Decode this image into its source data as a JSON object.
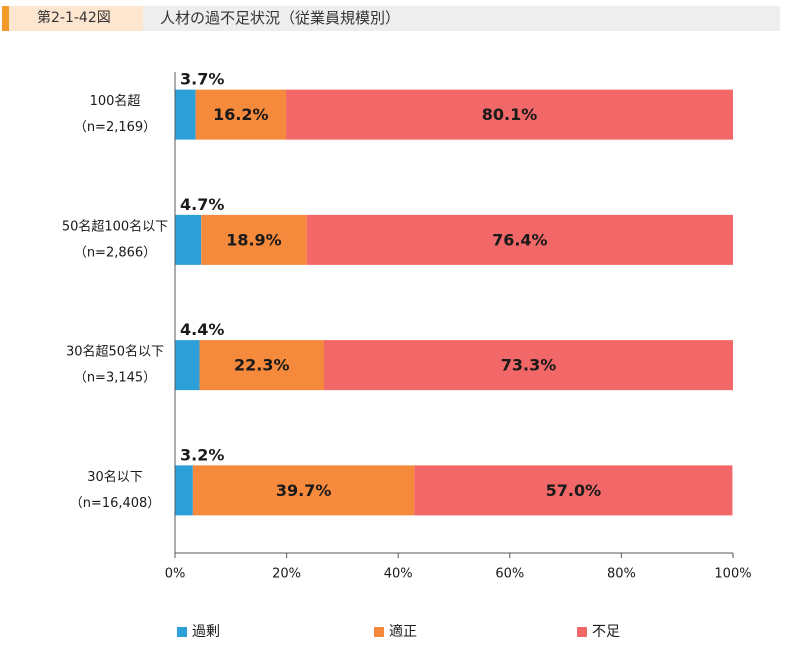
{
  "header": {
    "figure_number": "第2-1-42図"
  },
  "colors": {
    "header_accent": "#f39a2b",
    "header_number_bg": "#fde6d0",
    "header_title_bg": "#eeeeee",
    "axis": "#595959"
  },
  "chart_data": {
    "type": "bar",
    "orientation": "horizontal",
    "stacked": true,
    "title": "人材の過不足状況（従業員規模別）",
    "categories": [
      "100名超",
      "50名超100名以下",
      "30名超50名以下",
      "30名以下"
    ],
    "category_sample_sizes": [
      "（n=2,169）",
      "（n=2,866）",
      "（n=3,145）",
      "（n=16,408）"
    ],
    "series": [
      {
        "name": "過剰",
        "color": "#2d9fd8",
        "values": [
          3.7,
          4.7,
          4.4,
          3.2
        ],
        "labels": [
          "3.7%",
          "4.7%",
          "4.4%",
          "3.2%"
        ]
      },
      {
        "name": "適正",
        "color": "#f58a3c",
        "values": [
          16.2,
          18.9,
          22.3,
          39.7
        ],
        "labels": [
          "16.2%",
          "18.9%",
          "22.3%",
          "39.7%"
        ]
      },
      {
        "name": "不足",
        "color": "#f26767",
        "values": [
          80.1,
          76.4,
          73.3,
          57.0
        ],
        "labels": [
          "80.1%",
          "76.4%",
          "73.3%",
          "57.0%"
        ]
      }
    ],
    "xlim": [
      0,
      100
    ],
    "xticks": [
      0,
      20,
      40,
      60,
      80,
      100
    ],
    "xtick_labels": [
      "0%",
      "20%",
      "40%",
      "60%",
      "80%",
      "100%"
    ],
    "grid": false,
    "legend": "bottom"
  }
}
